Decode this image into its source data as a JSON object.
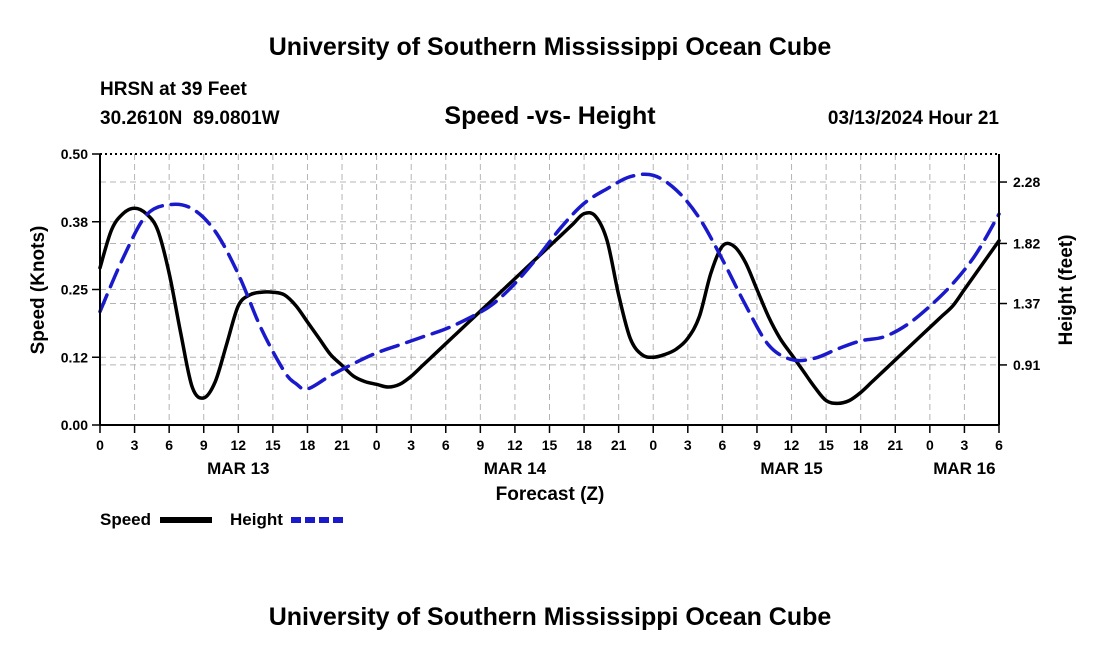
{
  "chart_data": {
    "type": "line",
    "title": "University of Southern Mississippi Ocean Cube",
    "footer_title": "University of Southern Mississippi Ocean Cube",
    "subtitle": "Speed -vs- Height",
    "station": "HRSN at 39 Feet",
    "coordinates": "30.2610N  89.0801W",
    "run_time": "03/13/2024 Hour 21",
    "xlabel": "Forecast (Z)",
    "ylabel": "Speed (Knots)",
    "ylabel_right": "Height (feet)",
    "x_unit": "hours since 03/13 00Z",
    "xlim": [
      0,
      78
    ],
    "ylim": [
      0,
      0.5
    ],
    "ylim_right": [
      0.46,
      2.49
    ],
    "yticks": [
      {
        "value": 0.0,
        "label": "0.00"
      },
      {
        "value": 0.125,
        "label": "0.12"
      },
      {
        "value": 0.25,
        "label": "0.25"
      },
      {
        "value": 0.375,
        "label": "0.38"
      },
      {
        "value": 0.5,
        "label": "0.50"
      }
    ],
    "yticks_right": [
      {
        "value": 0.91,
        "label": "0.91"
      },
      {
        "value": 1.37,
        "label": "1.37"
      },
      {
        "value": 1.82,
        "label": "1.82"
      },
      {
        "value": 2.28,
        "label": "2.28"
      }
    ],
    "xticks": [
      {
        "value": 0,
        "label": "0"
      },
      {
        "value": 3,
        "label": "3"
      },
      {
        "value": 6,
        "label": "6"
      },
      {
        "value": 9,
        "label": "9"
      },
      {
        "value": 12,
        "label": "12"
      },
      {
        "value": 15,
        "label": "15"
      },
      {
        "value": 18,
        "label": "18"
      },
      {
        "value": 21,
        "label": "21"
      },
      {
        "value": 24,
        "label": "0"
      },
      {
        "value": 27,
        "label": "3"
      },
      {
        "value": 30,
        "label": "6"
      },
      {
        "value": 33,
        "label": "9"
      },
      {
        "value": 36,
        "label": "12"
      },
      {
        "value": 39,
        "label": "15"
      },
      {
        "value": 42,
        "label": "18"
      },
      {
        "value": 45,
        "label": "21"
      },
      {
        "value": 48,
        "label": "0"
      },
      {
        "value": 51,
        "label": "3"
      },
      {
        "value": 54,
        "label": "6"
      },
      {
        "value": 57,
        "label": "9"
      },
      {
        "value": 60,
        "label": "12"
      },
      {
        "value": 63,
        "label": "15"
      },
      {
        "value": 66,
        "label": "18"
      },
      {
        "value": 69,
        "label": "21"
      },
      {
        "value": 72,
        "label": "0"
      },
      {
        "value": 75,
        "label": "3"
      },
      {
        "value": 78,
        "label": "6"
      }
    ],
    "day_labels": [
      {
        "value": 12,
        "label": "MAR 13"
      },
      {
        "value": 36,
        "label": "MAR 14"
      },
      {
        "value": 60,
        "label": "MAR 15"
      },
      {
        "value": 75,
        "label": "MAR 16"
      }
    ],
    "grid": true,
    "series": [
      {
        "name": "Speed",
        "axis": "left",
        "color": "#000000",
        "style": "solid",
        "x": [
          0,
          1,
          2,
          3,
          4,
          5,
          6,
          7,
          8,
          9,
          10,
          11,
          12,
          13,
          14,
          15,
          16,
          17,
          18,
          19,
          20,
          21,
          22,
          23,
          24,
          25,
          26,
          27,
          28,
          29,
          30,
          31,
          32,
          33,
          34,
          35,
          36,
          37,
          38,
          39,
          40,
          41,
          42,
          43,
          44,
          45,
          46,
          47,
          48,
          49,
          50,
          51,
          52,
          53,
          54,
          55,
          56,
          57,
          58,
          59,
          60,
          61,
          62,
          63,
          64,
          65,
          66,
          67,
          68,
          69,
          70,
          71,
          72,
          73,
          74,
          75,
          76,
          77,
          78
        ],
        "values": [
          0.29,
          0.36,
          0.39,
          0.4,
          0.39,
          0.36,
          0.28,
          0.17,
          0.07,
          0.05,
          0.08,
          0.15,
          0.22,
          0.24,
          0.245,
          0.245,
          0.24,
          0.22,
          0.19,
          0.16,
          0.13,
          0.11,
          0.09,
          0.08,
          0.075,
          0.07,
          0.075,
          0.09,
          0.11,
          0.13,
          0.15,
          0.17,
          0.19,
          0.21,
          0.23,
          0.25,
          0.27,
          0.29,
          0.31,
          0.33,
          0.35,
          0.37,
          0.39,
          0.385,
          0.34,
          0.24,
          0.16,
          0.13,
          0.125,
          0.13,
          0.14,
          0.16,
          0.2,
          0.28,
          0.33,
          0.33,
          0.3,
          0.25,
          0.2,
          0.16,
          0.13,
          0.1,
          0.07,
          0.045,
          0.04,
          0.045,
          0.06,
          0.08,
          0.1,
          0.12,
          0.14,
          0.16,
          0.18,
          0.2,
          0.22,
          0.25,
          0.28,
          0.31,
          0.34
        ]
      },
      {
        "name": "Height",
        "axis": "right",
        "color": "#1a1acc",
        "style": "dashed",
        "x": [
          0,
          2,
          4,
          6,
          8,
          10,
          12,
          14,
          16,
          17,
          18,
          20,
          22,
          24,
          26,
          28,
          30,
          32,
          34,
          36,
          38,
          40,
          42,
          44,
          46,
          48,
          50,
          52,
          54,
          56,
          58,
          60,
          62,
          64,
          66,
          68,
          70,
          72,
          74,
          76,
          78
        ],
        "values": [
          1.31,
          1.71,
          2.03,
          2.11,
          2.08,
          1.91,
          1.59,
          1.18,
          0.86,
          0.77,
          0.73,
          0.83,
          0.92,
          1.0,
          1.06,
          1.12,
          1.18,
          1.26,
          1.36,
          1.52,
          1.72,
          1.94,
          2.12,
          2.23,
          2.32,
          2.33,
          2.22,
          2.01,
          1.7,
          1.36,
          1.06,
          0.95,
          0.96,
          1.03,
          1.09,
          1.12,
          1.21,
          1.35,
          1.52,
          1.74,
          2.04
        ]
      }
    ]
  },
  "legend": {
    "speed_label": "Speed",
    "height_label": "Height"
  },
  "colors": {
    "speed": "#000000",
    "height": "#1a1acc",
    "grid": "#b4b4b4"
  }
}
